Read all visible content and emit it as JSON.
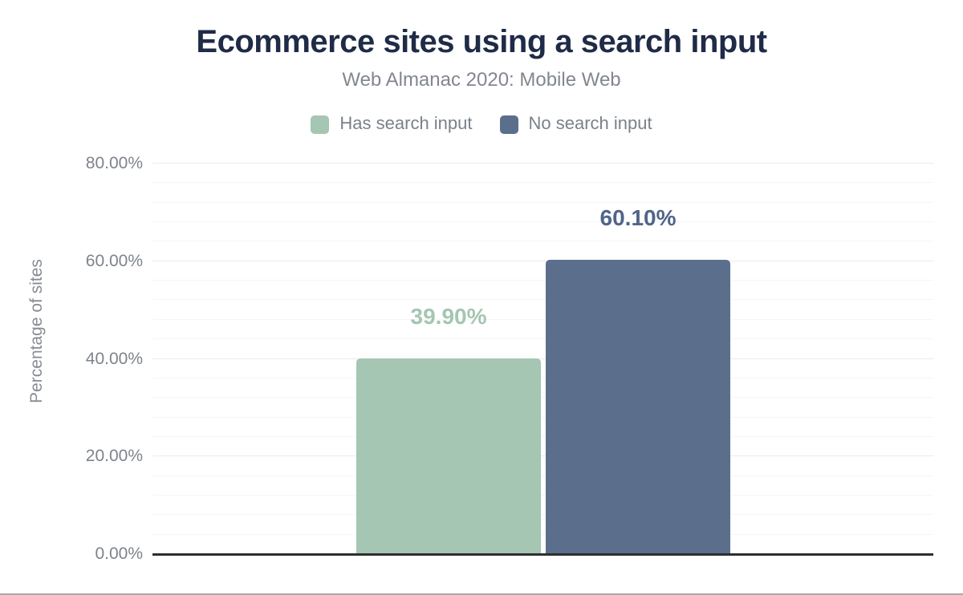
{
  "header": {
    "title": "Ecommerce sites using a search input",
    "subtitle": "Web Almanac 2020: Mobile Web"
  },
  "legend": {
    "items": [
      {
        "label": "Has search input",
        "color": "#a4c6b2"
      },
      {
        "label": "No search input",
        "color": "#5b6e8c"
      }
    ]
  },
  "y_axis": {
    "title": "Percentage of sites"
  },
  "colors": {
    "title_text": "#1f2b47",
    "subtitle_text": "#82878f",
    "axis_text": "#7e838c",
    "axis_line": "#2e2e30",
    "gridline_major": "#ebebeb",
    "gridline_minor": "#f6f6f6",
    "page_border": "#a9a9a9",
    "has_search_bar": "#a4c6b2",
    "has_search_label": "#a4c6b2",
    "no_search_bar": "#5b6e8c",
    "no_search_label": "#50658a"
  },
  "chart_data": {
    "type": "bar",
    "title": "Ecommerce sites using a search input",
    "subtitle": "Web Almanac 2020: Mobile Web",
    "categories": [
      ""
    ],
    "series": [
      {
        "name": "Has search input",
        "value": 39.9,
        "data_label": "39.90%",
        "bar_color": "#a4c6b2",
        "label_color": "#a4c6b2"
      },
      {
        "name": "No search input",
        "value": 60.1,
        "data_label": "60.10%",
        "bar_color": "#5b6e8c",
        "label_color": "#50658a"
      }
    ],
    "xlabel": "",
    "ylabel": "Percentage of sites",
    "ylim": [
      0,
      80
    ],
    "yticks": [
      {
        "value": 0,
        "label": "0.00%"
      },
      {
        "value": 20,
        "label": "20.00%"
      },
      {
        "value": 40,
        "label": "40.00%"
      },
      {
        "value": 60,
        "label": "60.00%"
      },
      {
        "value": 80,
        "label": "80.00%"
      }
    ],
    "minor_gridline_step": 4,
    "grid": "horizontal",
    "legend_position": "top"
  }
}
